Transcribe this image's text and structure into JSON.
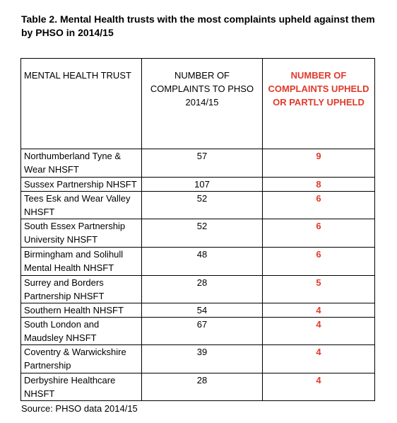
{
  "title": "Table 2. Mental Health trusts with the most complaints upheld against them by PHSO in 2014/15",
  "headers": {
    "trust": "MENTAL HEALTH TRUST",
    "complaints": "NUMBER OF COMPLAINTS TO PHSO 2014/15",
    "upheld": "NUMBER OF COMPLAINTS UPHELD OR PARTLY UPHELD"
  },
  "rows": [
    {
      "trust": "Northumberland Tyne & Wear NHSFT",
      "complaints": "57",
      "upheld": "9"
    },
    {
      "trust": "Sussex Partnership NHSFT",
      "complaints": "107",
      "upheld": "8"
    },
    {
      "trust": "Tees Esk and Wear Valley NHSFT",
      "complaints": "52",
      "upheld": "6"
    },
    {
      "trust": "South Essex Partnership University NHSFT",
      "complaints": "52",
      "upheld": "6"
    },
    {
      "trust": "Birmingham and Solihull Mental Health NHSFT",
      "complaints": "48",
      "upheld": "6"
    },
    {
      "trust": "Surrey and Borders Partnership NHSFT",
      "complaints": "28",
      "upheld": "5"
    },
    {
      "trust": "Southern Health NHSFT",
      "complaints": "54",
      "upheld": "4"
    },
    {
      "trust": "South London and Maudsley NHSFT",
      "complaints": "67",
      "upheld": "4"
    },
    {
      "trust": "Coventry & Warwickshire Partnership",
      "complaints": "39",
      "upheld": "4"
    },
    {
      "trust": "Derbyshire Healthcare NHSFT",
      "complaints": "28",
      "upheld": "4"
    }
  ],
  "source": "Source: PHSO data 2014/15",
  "colors": {
    "highlight": "#e03a2a"
  }
}
